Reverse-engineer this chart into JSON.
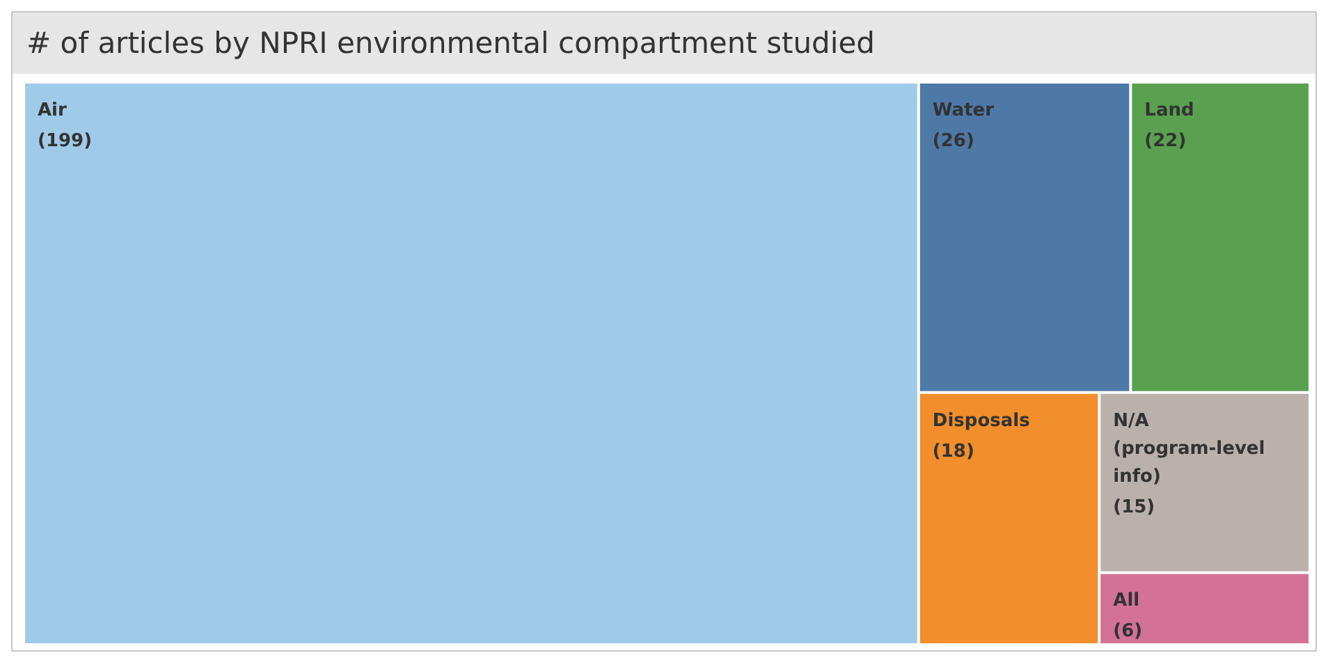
{
  "chart_data": {
    "type": "other",
    "title": "# of articles by NPRI environmental compartment studied",
    "categories": [
      "Air",
      "Water",
      "Land",
      "Disposals",
      "N/A (program-level info)",
      "All"
    ],
    "values": [
      199,
      26,
      22,
      18,
      15,
      6
    ],
    "value_labels": [
      "(199)",
      "(26)",
      "(22)",
      "(18)",
      "(15)",
      "(6)"
    ],
    "colors": [
      "#a0cbe8",
      "#4e79a7",
      "#59a14f",
      "#f28e2b",
      "#bab0ac",
      "#d37295"
    ]
  }
}
